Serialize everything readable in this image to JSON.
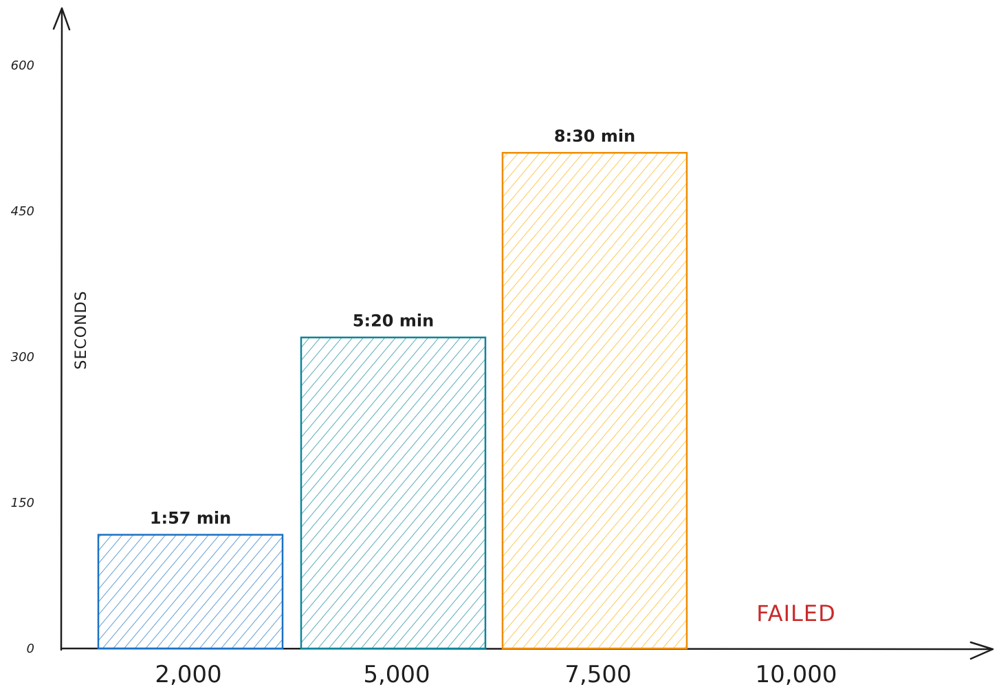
{
  "chart_data": {
    "type": "bar",
    "ylabel": "SECONDS",
    "xlabel": "",
    "ylim": [
      0,
      660
    ],
    "yticks": [
      0,
      150,
      300,
      450,
      600
    ],
    "categories": [
      "2,000",
      "5,000",
      "7,500",
      "10,000"
    ],
    "values": [
      117,
      320,
      510,
      null
    ],
    "data_labels": [
      "1:57 min",
      "5:20 min",
      "8:30 min",
      "FAILED"
    ],
    "colors": [
      "#1971c2",
      "#0c8599",
      "#f08c00",
      "#c92a2a"
    ],
    "hatch_colors": [
      "#1971c2",
      "#0c8599",
      "#fab005",
      "#c92a2a"
    ],
    "grid": false,
    "legend": "none"
  }
}
